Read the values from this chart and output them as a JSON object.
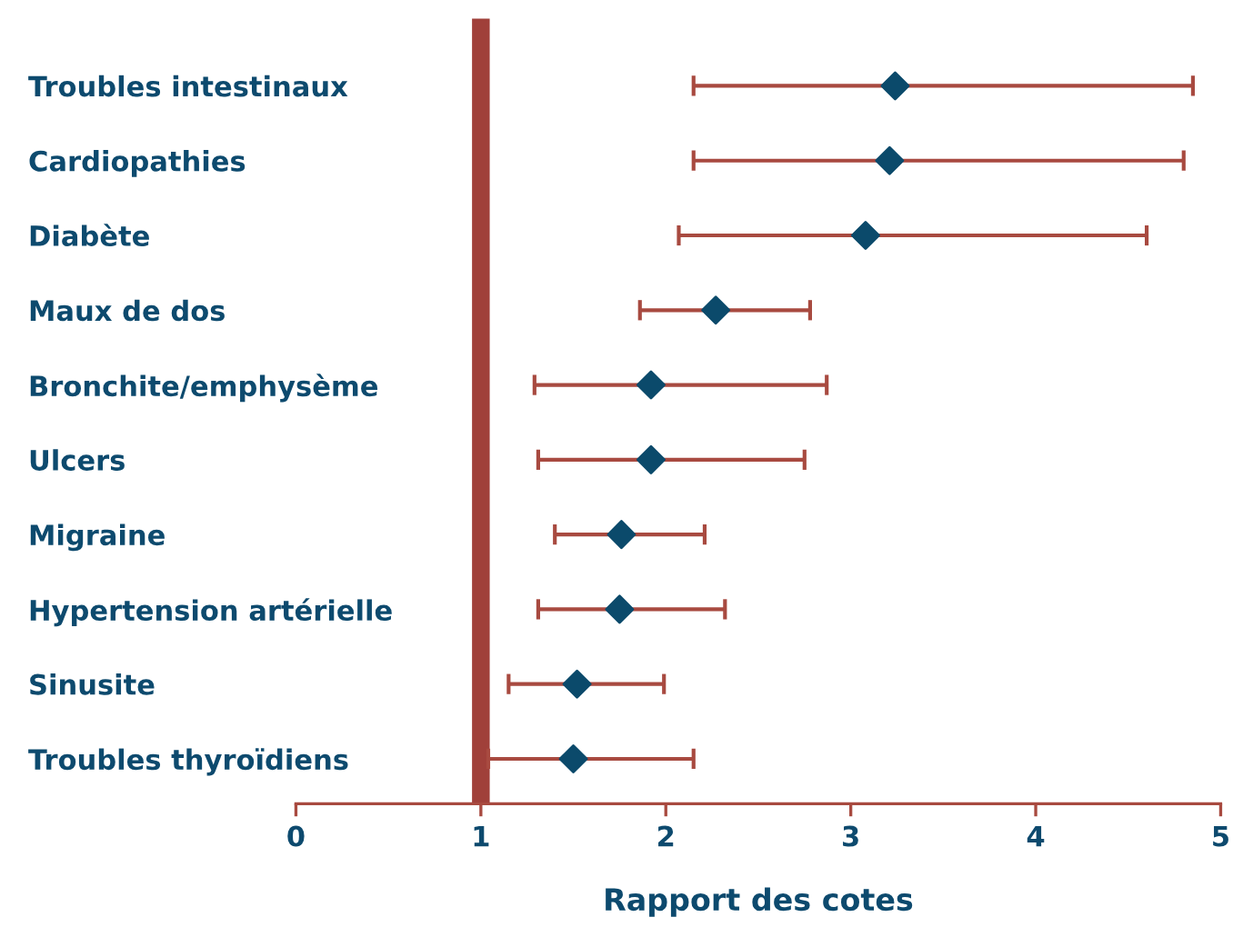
{
  "chart_data": {
    "type": "scatter",
    "orientation": "horizontal",
    "xlabel": "Rapport des cotes",
    "categories": [
      "Troubles intestinaux",
      "Cardiopathies",
      "Diabète",
      "Maux de dos",
      "Bronchite/emphysème",
      "Ulcers",
      "Migraine",
      "Hypertension artérielle",
      "Sinusite",
      "Troubles thyroïdiens"
    ],
    "series": [
      {
        "color": "#0b4a6b",
        "values": [
          3.24,
          3.21,
          3.08,
          2.27,
          1.92,
          1.92,
          1.76,
          1.75,
          1.52,
          1.5
        ],
        "errors": [
          [
            2.15,
            4.85
          ],
          [
            2.15,
            4.8
          ],
          [
            2.07,
            4.6
          ],
          [
            1.86,
            2.78
          ],
          [
            1.29,
            2.87
          ],
          [
            1.31,
            2.75
          ],
          [
            1.4,
            2.21
          ],
          [
            1.31,
            2.32
          ],
          [
            1.15,
            1.99
          ],
          [
            1.04,
            2.15
          ]
        ]
      }
    ],
    "marker": "diamond",
    "xlim": [
      0,
      5
    ],
    "xticks": [
      0,
      1,
      2,
      3,
      4,
      5
    ],
    "grid": false,
    "ref_lines": [
      {
        "axis": "x",
        "value": 1,
        "color": "#a0403a"
      }
    ]
  }
}
